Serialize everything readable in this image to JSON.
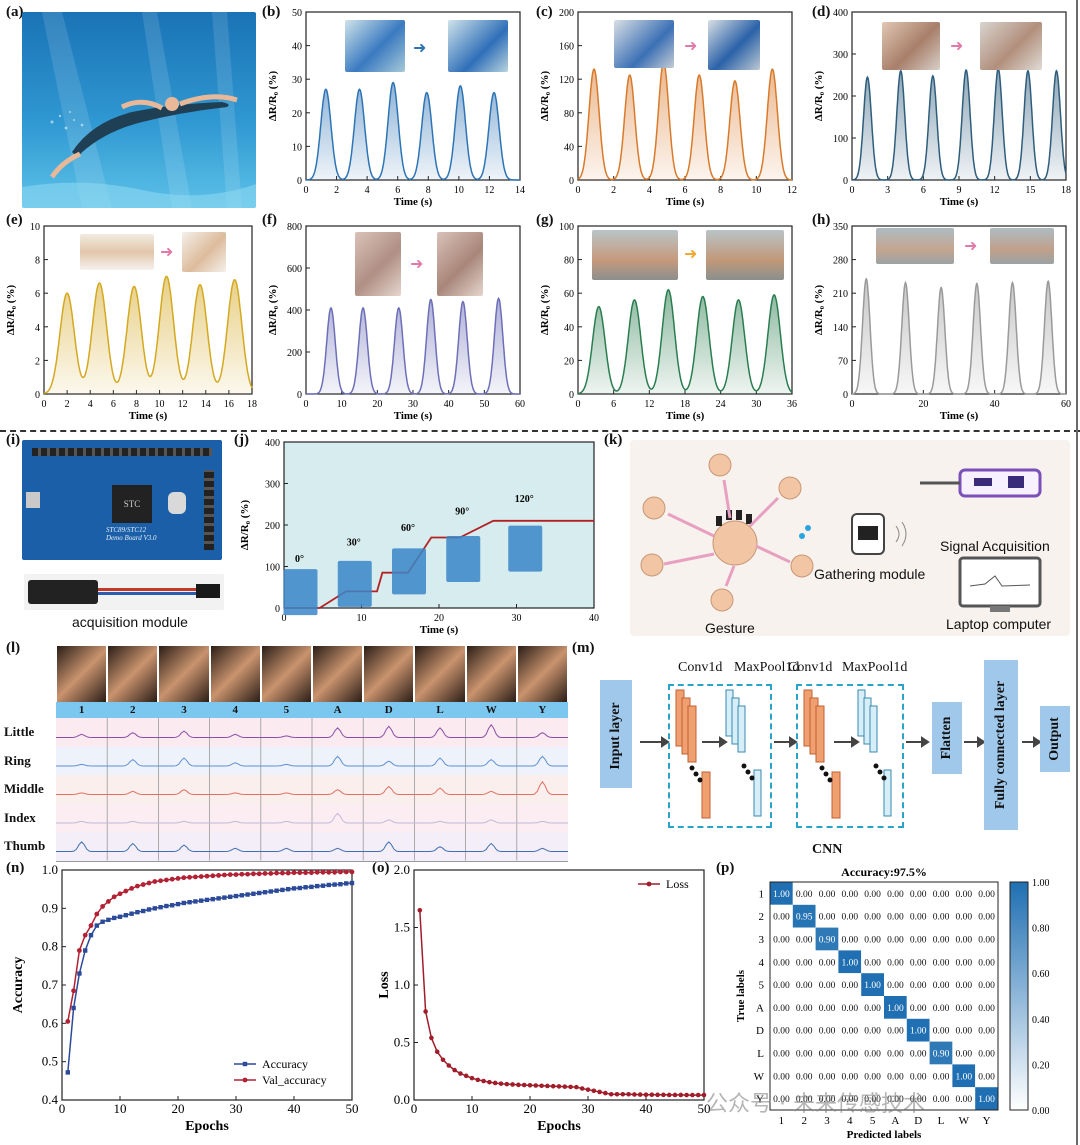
{
  "panel_labels": {
    "a": "(a)",
    "b": "(b)",
    "c": "(c)",
    "d": "(d)",
    "e": "(e)",
    "f": "(f)",
    "g": "(g)",
    "h": "(h)",
    "i": "(i)",
    "j": "(j)",
    "k": "(k)",
    "l": "(l)",
    "m": "(m)",
    "n": "(n)",
    "o": "(o)",
    "p": "(p)"
  },
  "colors": {
    "b": "#2e74b5",
    "c": "#d97a2b",
    "d": "#2f5d7c",
    "e": "#d4a820",
    "f": "#6d6fb8",
    "g": "#2a7d4f",
    "h": "#9a9a9a",
    "j": "#b22222",
    "n_acc": "#2c4a9a",
    "n_val": "#b22234",
    "o": "#a01d2a",
    "p_cm": "#1f6fb2"
  },
  "signal_charts": [
    {
      "id": "b",
      "ylabel": "ΔR/R₀ (%)",
      "xlabel": "Time (s)",
      "xlim": [
        0,
        14
      ],
      "ylim": [
        0,
        50
      ],
      "xticks": [
        0,
        2,
        4,
        6,
        8,
        10,
        12,
        14
      ],
      "yticks": [
        0,
        10,
        20,
        30,
        40,
        50
      ],
      "peaks": [
        [
          1.3,
          27
        ],
        [
          3.5,
          27
        ],
        [
          5.7,
          29
        ],
        [
          7.9,
          26
        ],
        [
          10.1,
          28
        ],
        [
          12.3,
          26
        ]
      ],
      "width": 0.7
    },
    {
      "id": "c",
      "ylabel": "ΔR/R₀ (%)",
      "xlabel": "Time (s)",
      "xlim": [
        0,
        12
      ],
      "ylim": [
        0,
        200
      ],
      "xticks": [
        0,
        2,
        4,
        6,
        8,
        10,
        12
      ],
      "yticks": [
        0,
        40,
        80,
        120,
        160,
        200
      ],
      "peaks": [
        [
          0.9,
          132
        ],
        [
          2.9,
          125
        ],
        [
          4.8,
          140
        ],
        [
          6.8,
          125
        ],
        [
          8.8,
          118
        ],
        [
          10.9,
          132
        ]
      ],
      "width": 0.6
    },
    {
      "id": "d",
      "ylabel": "ΔR/R₀ (%)",
      "xlabel": "Time (s)",
      "xlim": [
        0,
        18
      ],
      "ylim": [
        0,
        400
      ],
      "xticks": [
        0,
        3,
        6,
        9,
        12,
        15,
        18
      ],
      "yticks": [
        0,
        100,
        200,
        300,
        400
      ],
      "peaks": [
        [
          1.3,
          245
        ],
        [
          4.1,
          260
        ],
        [
          6.8,
          248
        ],
        [
          9.6,
          262
        ],
        [
          12.3,
          265
        ],
        [
          14.8,
          260
        ],
        [
          17.2,
          260
        ]
      ],
      "width": 0.7
    },
    {
      "id": "e",
      "ylabel": "ΔR/R₀ (%)",
      "xlabel": "Time (s)",
      "xlim": [
        0,
        18
      ],
      "ylim": [
        0,
        10
      ],
      "xticks": [
        0,
        2,
        4,
        6,
        8,
        10,
        12,
        14,
        16,
        18
      ],
      "yticks": [
        0,
        2,
        4,
        6,
        8,
        10
      ],
      "peaks": [
        [
          2.0,
          6.0
        ],
        [
          4.8,
          6.6
        ],
        [
          7.8,
          6.4
        ],
        [
          10.6,
          7.0
        ],
        [
          13.5,
          6.5
        ],
        [
          16.5,
          6.8
        ]
      ],
      "width": 1.3
    },
    {
      "id": "f",
      "ylabel": "ΔR/R₀ (%)",
      "xlabel": "Time (s)",
      "xlim": [
        0,
        60
      ],
      "ylim": [
        0,
        800
      ],
      "xticks": [
        0,
        10,
        20,
        30,
        40,
        50,
        60
      ],
      "yticks": [
        0,
        200,
        400,
        600,
        800
      ],
      "peaks": [
        [
          7,
          410
        ],
        [
          16,
          410
        ],
        [
          26,
          410
        ],
        [
          35,
          450
        ],
        [
          44,
          440
        ],
        [
          54,
          455
        ]
      ],
      "width": 2.5
    },
    {
      "id": "g",
      "ylabel": "ΔR/R₀ (%)",
      "xlabel": "Time (s)",
      "xlim": [
        0,
        36
      ],
      "ylim": [
        0,
        100
      ],
      "xticks": [
        0,
        6,
        12,
        18,
        24,
        30,
        36
      ],
      "yticks": [
        0,
        20,
        40,
        60,
        80,
        100
      ],
      "peaks": [
        [
          3.5,
          52
        ],
        [
          9.5,
          56
        ],
        [
          15.2,
          62
        ],
        [
          21,
          58
        ],
        [
          27,
          56
        ],
        [
          33,
          59
        ]
      ],
      "width": 2.2
    },
    {
      "id": "h",
      "ylabel": "ΔR/R₀ (%)",
      "xlabel": "Time (s)",
      "xlim": [
        0,
        60
      ],
      "ylim": [
        0,
        350
      ],
      "xticks": [
        0,
        20,
        40,
        60
      ],
      "yticks": [
        0,
        70,
        140,
        210,
        280,
        350
      ],
      "peaks": [
        [
          4,
          240
        ],
        [
          15,
          232
        ],
        [
          25,
          222
        ],
        [
          35,
          230
        ],
        [
          45,
          232
        ],
        [
          55,
          235
        ]
      ],
      "width": 2.2
    }
  ],
  "chart_j": {
    "ylabel": "ΔR/R₀ (%)",
    "xlabel": "Time (s)",
    "xlim": [
      0,
      40
    ],
    "ylim": [
      0,
      400
    ],
    "xticks": [
      0,
      10,
      20,
      30,
      40
    ],
    "yticks": [
      0,
      100,
      200,
      300,
      400
    ],
    "x": [
      0,
      4.6,
      8,
      12,
      12.7,
      16,
      19,
      22.7,
      27,
      30,
      40
    ],
    "y": [
      0,
      0,
      40,
      40,
      85,
      85,
      170,
      170,
      210,
      210,
      210
    ],
    "angles": [
      "0°",
      "30°",
      "60°",
      "90°",
      "120°"
    ]
  },
  "module": {
    "caption": "acquisition module",
    "board_text": "STC89/STC12\nDemo Board V3.0",
    "chip_text": "STC"
  },
  "gesture_diagram": {
    "gesture_label": "Gesture",
    "gathering_label": "Gathering module",
    "signal_label": "Signal Acquisition",
    "laptop_label": "Laptop computer"
  },
  "gesture_table": {
    "columns": [
      "1",
      "2",
      "3",
      "4",
      "5",
      "A",
      "D",
      "L",
      "W",
      "Y"
    ],
    "rows": [
      "Little",
      "Ring",
      "Middle",
      "Index",
      "Thumb"
    ]
  },
  "cnn": {
    "input": "Input layer",
    "conv1": "Conv1d",
    "pool1": "MaxPool1d",
    "conv2": "Conv1d",
    "pool2": "MaxPool1d",
    "flatten": "Flatten",
    "fc": "Fully connected layer",
    "output": "Output",
    "caption": "CNN"
  },
  "chart_n": {
    "type": "line",
    "xlabel": "Epochs",
    "ylabel": "Accuracy",
    "xlim": [
      0,
      50
    ],
    "ylim": [
      0.4,
      1.0
    ],
    "xticks": [
      0,
      10,
      20,
      30,
      40,
      50
    ],
    "yticks": [
      0.4,
      0.5,
      0.6,
      0.7,
      0.8,
      0.9,
      1.0
    ],
    "series": [
      {
        "name": "Accuracy",
        "y": [
          0.472,
          0.64,
          0.73,
          0.79,
          0.83,
          0.855,
          0.865,
          0.87,
          0.875,
          0.878,
          0.882,
          0.886,
          0.89,
          0.893,
          0.897,
          0.9,
          0.903,
          0.906,
          0.908,
          0.911,
          0.914,
          0.916,
          0.918,
          0.92,
          0.922,
          0.924,
          0.926,
          0.928,
          0.93,
          0.932,
          0.934,
          0.936,
          0.938,
          0.94,
          0.942,
          0.944,
          0.946,
          0.948,
          0.95,
          0.952,
          0.953,
          0.955,
          0.956,
          0.958,
          0.959,
          0.961,
          0.962,
          0.963,
          0.965,
          0.966
        ]
      },
      {
        "name": "Val_accuracy",
        "y": [
          0.605,
          0.685,
          0.79,
          0.83,
          0.855,
          0.885,
          0.905,
          0.918,
          0.93,
          0.938,
          0.945,
          0.952,
          0.958,
          0.962,
          0.966,
          0.97,
          0.972,
          0.974,
          0.976,
          0.978,
          0.98,
          0.981,
          0.982,
          0.983,
          0.984,
          0.985,
          0.986,
          0.987,
          0.988,
          0.988,
          0.989,
          0.989,
          0.99,
          0.99,
          0.991,
          0.991,
          0.992,
          0.992,
          0.992,
          0.993,
          0.993,
          0.993,
          0.993,
          0.994,
          0.994,
          0.994,
          0.994,
          0.995,
          0.995,
          0.995
        ]
      }
    ]
  },
  "chart_o": {
    "type": "line",
    "xlabel": "Epochs",
    "ylabel": "Loss",
    "xlim": [
      0,
      50
    ],
    "ylim": [
      0,
      2.0
    ],
    "xticks": [
      0,
      10,
      20,
      30,
      40,
      50
    ],
    "yticks": [
      0.0,
      0.5,
      1.0,
      1.5,
      2.0
    ],
    "series": [
      {
        "name": "Loss",
        "y": [
          1.65,
          0.77,
          0.54,
          0.42,
          0.35,
          0.3,
          0.26,
          0.23,
          0.21,
          0.19,
          0.175,
          0.165,
          0.155,
          0.148,
          0.142,
          0.138,
          0.135,
          0.132,
          0.13,
          0.128,
          0.126,
          0.124,
          0.122,
          0.12,
          0.118,
          0.116,
          0.114,
          0.112,
          0.1,
          0.09,
          0.08,
          0.07,
          0.06,
          0.05,
          0.05,
          0.05,
          0.05,
          0.048,
          0.047,
          0.046,
          0.046,
          0.045,
          0.045,
          0.044,
          0.044,
          0.044,
          0.043,
          0.043,
          0.043,
          0.043
        ]
      }
    ]
  },
  "chart_p": {
    "type": "heatmap",
    "title": "Accuracy:97.5%",
    "xlabel": "Predicted labels",
    "ylabel": "True labels",
    "labels": [
      "1",
      "2",
      "3",
      "4",
      "5",
      "A",
      "D",
      "L",
      "W",
      "Y"
    ],
    "diagonal": [
      1.0,
      0.95,
      0.9,
      1.0,
      1.0,
      1.0,
      1.0,
      0.9,
      1.0,
      1.0
    ],
    "colorbar_ticks": [
      "0.00",
      "0.20",
      "0.40",
      "0.60",
      "0.80",
      "1.00"
    ]
  },
  "watermark": "公众号 · 未来传感技术"
}
